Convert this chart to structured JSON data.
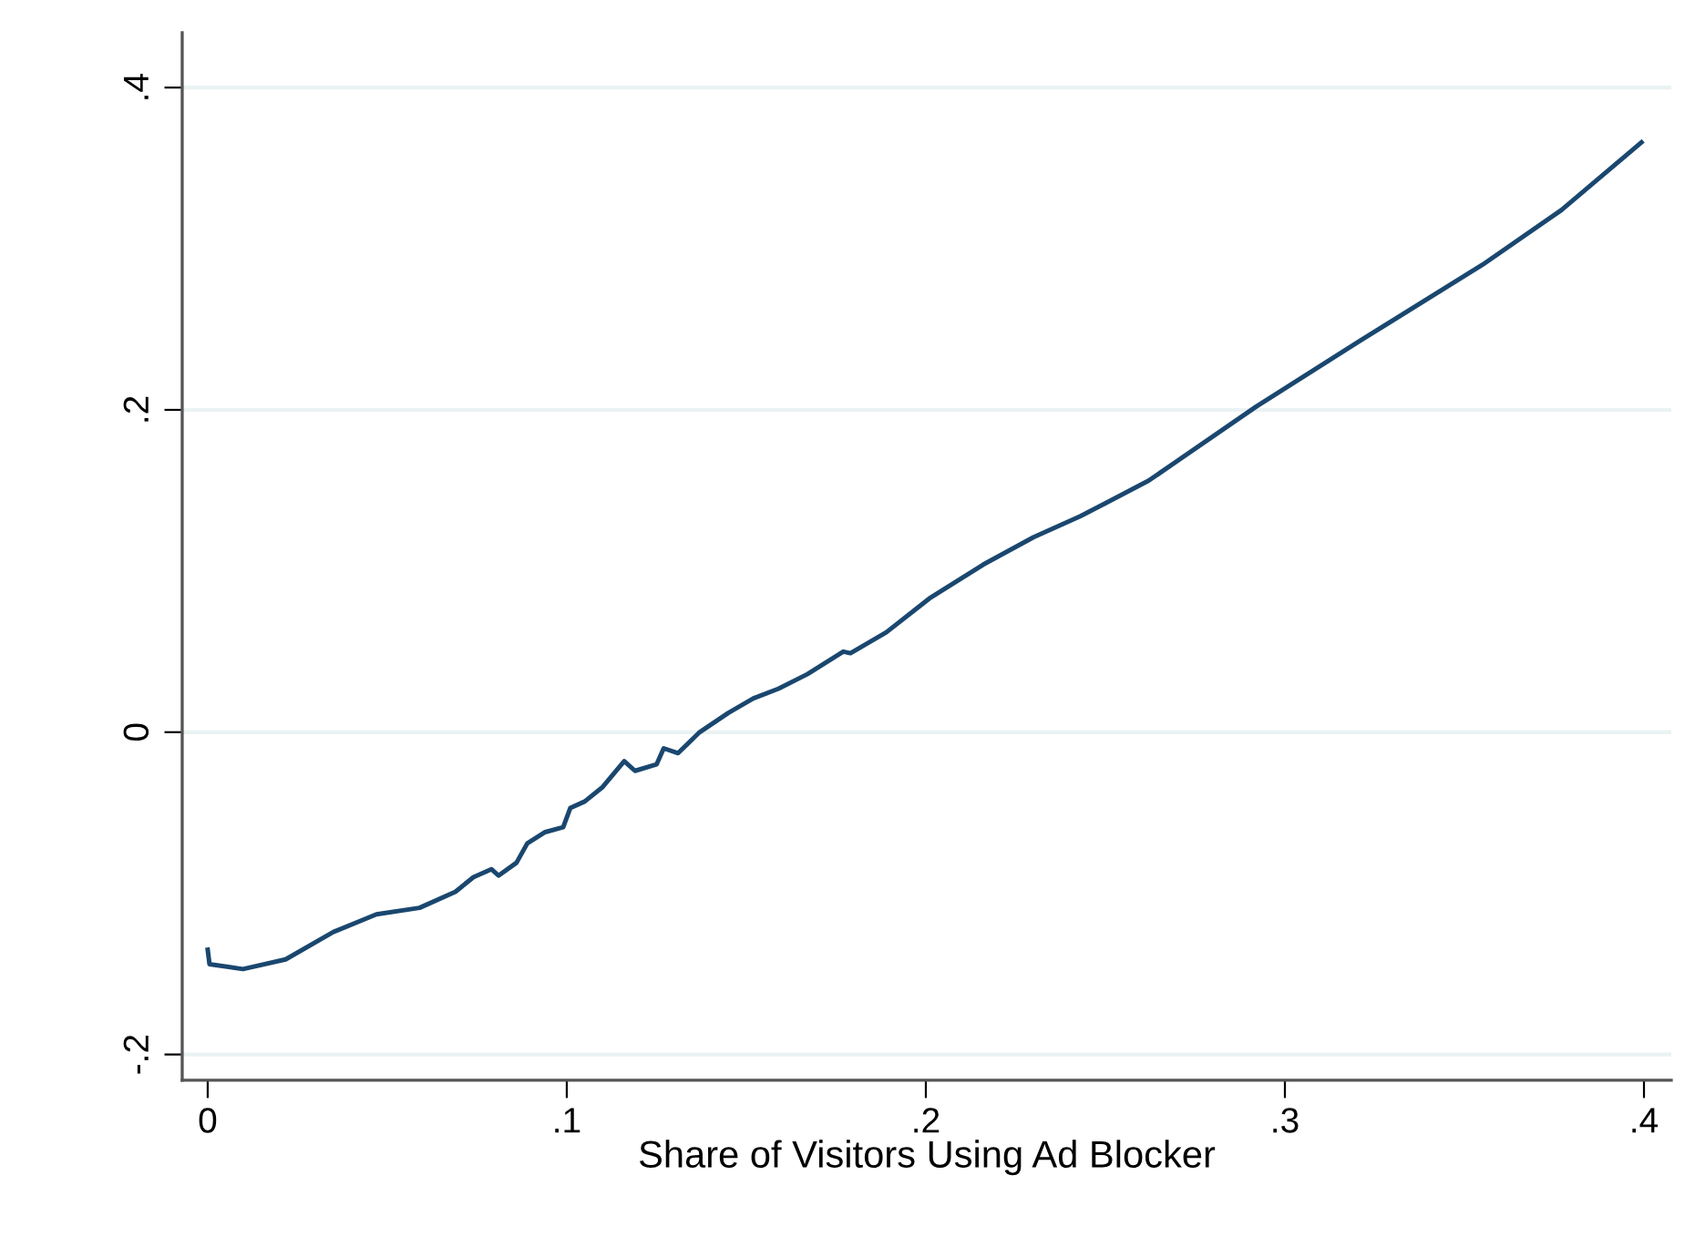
{
  "chart_data": {
    "type": "line",
    "xlabel": "Share of Visitors Using Ad Blocker",
    "xlim": [
      -0.0071,
      0.4076
    ],
    "ylim": [
      -0.216,
      0.434
    ],
    "xticks": [
      0,
      {
        "value": 0.1,
        "label": ".1"
      },
      {
        "value": 0.2,
        "label": ".2"
      },
      {
        "value": 0.3,
        "label": ".3"
      },
      {
        "value": 0.4,
        "label": ".4"
      }
    ],
    "yticks": [
      {
        "value": -0.2,
        "label": "-.2"
      },
      0,
      {
        "value": 0.2,
        "label": ".2"
      },
      {
        "value": 0.4,
        "label": ".4"
      }
    ],
    "grid": "y",
    "legend": false,
    "marker": "none",
    "line_style": "solid",
    "series": [
      {
        "color": "#1a476f",
        "x": [
          0,
          0.0005,
          0.0098,
          0.0217,
          0.035,
          0.047,
          0.059,
          0.069,
          0.074,
          0.079,
          0.081,
          0.086,
          0.089,
          0.094,
          0.099,
          0.101,
          0.105,
          0.11,
          0.116,
          0.119,
          0.125,
          0.127,
          0.131,
          0.137,
          0.145,
          0.152,
          0.159,
          0.167,
          0.177,
          0.179,
          0.189,
          0.201,
          0.216,
          0.23,
          0.243,
          0.25,
          0.262,
          0.292,
          0.321,
          0.355,
          0.377,
          0.3993
        ],
        "values": [
          -0.135,
          -0.144,
          -0.147,
          -0.141,
          -0.124,
          -0.113,
          -0.109,
          -0.099,
          -0.09,
          -0.085,
          -0.089,
          -0.081,
          -0.069,
          -0.062,
          -0.059,
          -0.047,
          -0.043,
          -0.034,
          -0.018,
          -0.024,
          -0.02,
          -0.01,
          -0.013,
          0.0,
          0.012,
          0.021,
          0.027,
          0.036,
          0.05,
          0.049,
          0.062,
          0.083,
          0.104,
          0.121,
          0.134,
          0.142,
          0.156,
          0.202,
          0.243,
          0.29,
          0.324,
          0.366
        ]
      }
    ]
  }
}
